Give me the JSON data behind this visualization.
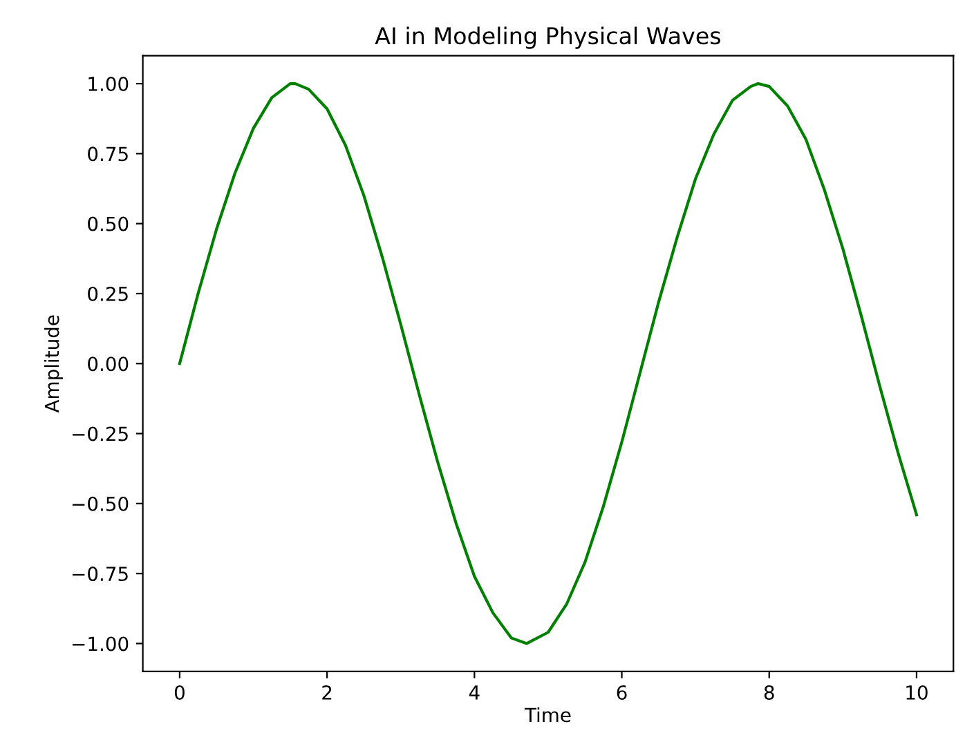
{
  "chart_data": {
    "type": "line",
    "title": "AI in Modeling Physical Waves",
    "xlabel": "Time",
    "ylabel": "Amplitude",
    "series": [
      {
        "color": "#008000",
        "x": [
          0,
          0.25,
          0.5,
          0.75,
          1,
          1.25,
          1.5,
          1.57,
          1.75,
          2,
          2.25,
          2.5,
          2.75,
          3,
          3.25,
          3.5,
          3.75,
          4,
          4.25,
          4.5,
          4.71,
          5,
          5.25,
          5.5,
          5.75,
          6,
          6.25,
          6.5,
          6.75,
          7,
          7.25,
          7.5,
          7.75,
          7.85,
          8,
          8.25,
          8.5,
          8.75,
          9,
          9.25,
          9.5,
          9.75,
          10
        ],
        "values": [
          0,
          0.25,
          0.48,
          0.68,
          0.84,
          0.95,
          1.0,
          1.0,
          0.98,
          0.91,
          0.78,
          0.6,
          0.38,
          0.14,
          -0.11,
          -0.35,
          -0.57,
          -0.76,
          -0.89,
          -0.98,
          -1.0,
          -0.96,
          -0.86,
          -0.71,
          -0.51,
          -0.28,
          -0.03,
          0.22,
          0.45,
          0.66,
          0.82,
          0.94,
          0.99,
          1.0,
          0.99,
          0.92,
          0.8,
          0.62,
          0.41,
          0.17,
          -0.08,
          -0.32,
          -0.54
        ]
      }
    ],
    "xlim": [
      -0.5,
      10.5
    ],
    "ylim": [
      -1.1,
      1.1
    ],
    "xticks": [
      0,
      2,
      4,
      6,
      8,
      10
    ],
    "yticks": [
      {
        "value": -1,
        "label": "−1.00"
      },
      {
        "value": -0.75,
        "label": "−0.75"
      },
      {
        "value": -0.5,
        "label": "−0.50"
      },
      {
        "value": -0.25,
        "label": "−0.25"
      },
      {
        "value": 0,
        "label": "0.00"
      },
      {
        "value": 0.25,
        "label": "0.25"
      },
      {
        "value": 0.5,
        "label": "0.50"
      },
      {
        "value": 0.75,
        "label": "0.75"
      },
      {
        "value": 1,
        "label": "1.00"
      }
    ],
    "grid": false,
    "legend": false,
    "marker": "none",
    "line_style": "solid"
  }
}
